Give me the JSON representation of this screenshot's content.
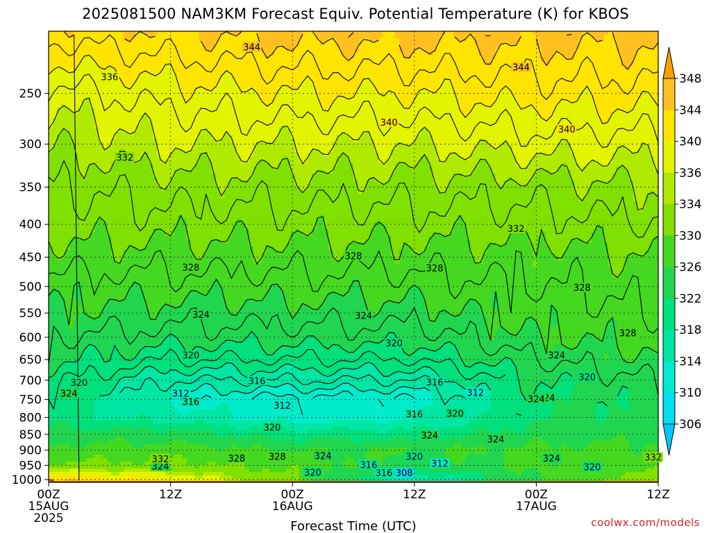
{
  "title": "2025081500 NAM3KM Forecast Equiv. Potential Temperature (K) for KBOS",
  "credit": "coolwx.com/models",
  "chart_data": {
    "type": "heatmap",
    "title": "2025081500 NAM3KM Forecast Equiv. Potential Temperature (K) for KBOS",
    "xlabel": "Forecast Time (UTC)",
    "ylabel": "",
    "x_ticks": [
      {
        "hour": 0,
        "lines": [
          "00Z",
          "15AUG",
          "2025"
        ]
      },
      {
        "hour": 12,
        "lines": [
          "12Z"
        ]
      },
      {
        "hour": 24,
        "lines": [
          "00Z",
          "16AUG"
        ]
      },
      {
        "hour": 36,
        "lines": [
          "12Z"
        ]
      },
      {
        "hour": 48,
        "lines": [
          "00Z",
          "17AUG"
        ]
      },
      {
        "hour": 60,
        "lines": [
          "12Z"
        ]
      }
    ],
    "xlim_hours": [
      0,
      60
    ],
    "y_scale": "log-pressure",
    "y_ticks": [
      250,
      300,
      350,
      400,
      450,
      500,
      550,
      600,
      650,
      700,
      750,
      800,
      850,
      900,
      950,
      1000
    ],
    "ylim_hpa": [
      1010,
      200
    ],
    "ground_level_hpa": 1005,
    "grid": true,
    "colorbar": {
      "labels": [
        306,
        310,
        314,
        318,
        322,
        326,
        330,
        334,
        336,
        340,
        344,
        348
      ],
      "colors": [
        "#00c8ff",
        "#00e0f0",
        "#00eccc",
        "#00e6a4",
        "#00e07c",
        "#20d650",
        "#44d820",
        "#80e000",
        "#b0ea00",
        "#e2f400",
        "#ffe400",
        "#ffc020",
        "#f8a000"
      ]
    },
    "theta_e_profile": {
      "pressure_hpa": [
        1000,
        950,
        900,
        850,
        800,
        750,
        700,
        650,
        600,
        550,
        500,
        450,
        400,
        350,
        300,
        250,
        200
      ],
      "hour_0": [
        344,
        331,
        327,
        324,
        320,
        321,
        321,
        323,
        324,
        326,
        327,
        329,
        331,
        332,
        334,
        337,
        343
      ],
      "hour_12": [
        340,
        331,
        328,
        324,
        316,
        313,
        316,
        320,
        323,
        325,
        327,
        329,
        331,
        333,
        336,
        339,
        344
      ],
      "hour_24": [
        330,
        329,
        326,
        320,
        312,
        311,
        316,
        320,
        323,
        325,
        327,
        329,
        331,
        333,
        336,
        340,
        345
      ],
      "hour_36": [
        314,
        324,
        326,
        320,
        313,
        312,
        316,
        320,
        323,
        325,
        327,
        329,
        331,
        333,
        336,
        340,
        345
      ],
      "hour_48": [
        326,
        327,
        327,
        324,
        322,
        322,
        322,
        324,
        326,
        327,
        328,
        329,
        331,
        333,
        337,
        341,
        345
      ],
      "hour_60": [
        334,
        328,
        327,
        325,
        323,
        323,
        324,
        326,
        327,
        328,
        329,
        330,
        332,
        334,
        337,
        341,
        345
      ]
    },
    "contour_labels": [
      {
        "value": 344,
        "hour": 20.0,
        "p": 212
      },
      {
        "value": 344,
        "hour": 46.5,
        "p": 228
      },
      {
        "value": 336,
        "hour": 6.0,
        "p": 236
      },
      {
        "value": 340,
        "hour": 33.5,
        "p": 278
      },
      {
        "value": 340,
        "hour": 51.0,
        "p": 285
      },
      {
        "value": 332,
        "hour": 7.5,
        "p": 315
      },
      {
        "value": 332,
        "hour": 46.0,
        "p": 407
      },
      {
        "value": 328,
        "hour": 14.0,
        "p": 468
      },
      {
        "value": 328,
        "hour": 30.0,
        "p": 449
      },
      {
        "value": 328,
        "hour": 38.0,
        "p": 469
      },
      {
        "value": 328,
        "hour": 52.5,
        "p": 503
      },
      {
        "value": 328,
        "hour": 57.0,
        "p": 592
      },
      {
        "value": 324,
        "hour": 15.0,
        "p": 554
      },
      {
        "value": 324,
        "hour": 31.0,
        "p": 556
      },
      {
        "value": 324,
        "hour": 50.0,
        "p": 641
      },
      {
        "value": 324,
        "hour": 2.0,
        "p": 735
      },
      {
        "value": 324,
        "hour": 49.0,
        "p": 747
      },
      {
        "value": 324,
        "hour": 37.5,
        "p": 855
      },
      {
        "value": 324,
        "hour": 44.0,
        "p": 866
      },
      {
        "value": 324,
        "hour": 49.5,
        "p": 928
      },
      {
        "value": 324,
        "hour": 11.0,
        "p": 955
      },
      {
        "value": 324,
        "hour": 27.0,
        "p": 920
      },
      {
        "value": 320,
        "hour": 3.0,
        "p": 707
      },
      {
        "value": 320,
        "hour": 14.0,
        "p": 641
      },
      {
        "value": 320,
        "hour": 34.0,
        "p": 614
      },
      {
        "value": 320,
        "hour": 53.0,
        "p": 693
      },
      {
        "value": 320,
        "hour": 40.0,
        "p": 790
      },
      {
        "value": 320,
        "hour": 22.0,
        "p": 831
      },
      {
        "value": 320,
        "hour": 36.0,
        "p": 922
      },
      {
        "value": 320,
        "hour": 26.0,
        "p": 976
      },
      {
        "value": 320,
        "hour": 53.5,
        "p": 957
      },
      {
        "value": 316,
        "hour": 20.5,
        "p": 703
      },
      {
        "value": 316,
        "hour": 38.0,
        "p": 706
      },
      {
        "value": 316,
        "hour": 14.0,
        "p": 757
      },
      {
        "value": 316,
        "hour": 36.0,
        "p": 792
      },
      {
        "value": 316,
        "hour": 33.0,
        "p": 978
      },
      {
        "value": 316,
        "hour": 31.5,
        "p": 950
      },
      {
        "value": 312,
        "hour": 13.0,
        "p": 735
      },
      {
        "value": 312,
        "hour": 23.0,
        "p": 768
      },
      {
        "value": 312,
        "hour": 42.0,
        "p": 733
      },
      {
        "value": 312,
        "hour": 38.5,
        "p": 945
      },
      {
        "value": 308,
        "hour": 35.0,
        "p": 978
      },
      {
        "value": 328,
        "hour": 18.5,
        "p": 928
      },
      {
        "value": 328,
        "hour": 22.5,
        "p": 922
      },
      {
        "value": 332,
        "hour": 11.0,
        "p": 930
      },
      {
        "value": 332,
        "hour": 59.5,
        "p": 925
      },
      {
        "value": 324,
        "hour": 48.0,
        "p": 750
      }
    ]
  }
}
